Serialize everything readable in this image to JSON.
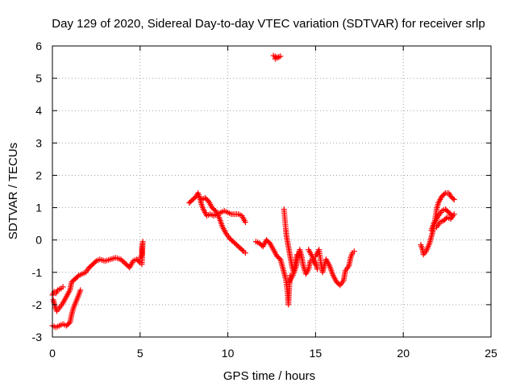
{
  "chart_data": {
    "type": "scatter",
    "title": "Day 129 of 2020, Sidereal Day-to-day VTEC variation (SDTVAR) for receiver srlp",
    "xlabel": "GPS time / hours",
    "ylabel": "SDTVAR / TECUs",
    "xlim": [
      0,
      25
    ],
    "ylim": [
      -3,
      6
    ],
    "xticks": [
      0,
      5,
      10,
      15,
      20,
      25
    ],
    "yticks": [
      -3,
      -2,
      -1,
      0,
      1,
      2,
      3,
      4,
      5,
      6
    ],
    "xtick_labels": [
      "0",
      "5",
      "10",
      "15",
      "20",
      "25"
    ],
    "ytick_labels": [
      "-3",
      "-2",
      "-1",
      "0",
      "1",
      "2",
      "3",
      "4",
      "5",
      "6"
    ],
    "grid": true,
    "marker": "+",
    "marker_color": "#ff0000",
    "series": [
      {
        "name": "srlp",
        "segments": [
          [
            [
              0.0,
              -2.65
            ],
            [
              0.2,
              -2.7
            ],
            [
              0.4,
              -2.65
            ],
            [
              0.6,
              -2.6
            ],
            [
              0.8,
              -2.65
            ],
            [
              1.0,
              -2.55
            ],
            [
              1.1,
              -2.3
            ],
            [
              1.2,
              -2.1
            ],
            [
              1.35,
              -1.9
            ],
            [
              1.5,
              -1.7
            ],
            [
              1.6,
              -1.55
            ]
          ],
          [
            [
              0.0,
              -1.7
            ],
            [
              0.1,
              -1.6
            ],
            [
              0.2,
              -1.65
            ],
            [
              0.3,
              -1.55
            ],
            [
              0.5,
              -1.5
            ],
            [
              0.6,
              -1.45
            ]
          ],
          [
            [
              0.05,
              -1.85
            ],
            [
              0.15,
              -2.05
            ],
            [
              0.25,
              -2.2
            ],
            [
              0.4,
              -2.1
            ],
            [
              0.6,
              -1.95
            ],
            [
              0.8,
              -1.75
            ],
            [
              1.0,
              -1.55
            ],
            [
              1.1,
              -1.3
            ],
            [
              1.3,
              -1.2
            ],
            [
              1.5,
              -1.1
            ],
            [
              1.7,
              -1.05
            ],
            [
              1.9,
              -1.0
            ],
            [
              2.1,
              -0.85
            ],
            [
              2.3,
              -0.75
            ],
            [
              2.5,
              -0.65
            ],
            [
              2.7,
              -0.6
            ],
            [
              3.0,
              -0.65
            ],
            [
              3.3,
              -0.6
            ],
            [
              3.6,
              -0.55
            ],
            [
              3.9,
              -0.6
            ],
            [
              4.2,
              -0.75
            ],
            [
              4.4,
              -0.85
            ],
            [
              4.5,
              -0.75
            ],
            [
              4.6,
              -0.65
            ],
            [
              4.8,
              -0.6
            ],
            [
              5.0,
              -0.7
            ]
          ],
          [
            [
              5.0,
              -0.55
            ],
            [
              5.1,
              -0.45
            ],
            [
              5.1,
              -0.25
            ],
            [
              5.15,
              -0.05
            ],
            [
              5.1,
              -0.75
            ]
          ],
          [
            [
              7.8,
              1.15
            ],
            [
              8.0,
              1.25
            ],
            [
              8.2,
              1.35
            ],
            [
              8.3,
              1.45
            ],
            [
              8.4,
              1.3
            ],
            [
              8.5,
              1.1
            ],
            [
              8.6,
              0.95
            ],
            [
              8.7,
              0.85
            ],
            [
              8.8,
              0.75
            ],
            [
              9.0,
              0.8
            ],
            [
              9.2,
              0.75
            ],
            [
              9.4,
              0.8
            ],
            [
              9.6,
              0.85
            ],
            [
              9.8,
              0.9
            ],
            [
              10.0,
              0.85
            ],
            [
              10.2,
              0.8
            ],
            [
              10.4,
              0.8
            ],
            [
              10.6,
              0.8
            ],
            [
              10.8,
              0.75
            ],
            [
              11.0,
              0.55
            ]
          ],
          [
            [
              8.5,
              1.25
            ],
            [
              8.7,
              1.3
            ],
            [
              8.9,
              1.2
            ],
            [
              9.1,
              1.0
            ],
            [
              9.3,
              0.9
            ],
            [
              9.5,
              0.7
            ],
            [
              9.7,
              0.4
            ],
            [
              9.9,
              0.2
            ],
            [
              10.1,
              0.05
            ],
            [
              10.3,
              -0.05
            ],
            [
              10.5,
              -0.15
            ],
            [
              10.7,
              -0.25
            ],
            [
              10.9,
              -0.35
            ],
            [
              11.0,
              -0.4
            ]
          ],
          [
            [
              12.6,
              5.7
            ],
            [
              12.8,
              5.65
            ],
            [
              13.0,
              5.68
            ],
            [
              12.7,
              5.6
            ]
          ],
          [
            [
              11.6,
              -0.05
            ],
            [
              11.8,
              -0.1
            ],
            [
              12.0,
              -0.2
            ],
            [
              12.2,
              0.0
            ],
            [
              12.4,
              -0.1
            ],
            [
              12.6,
              -0.3
            ],
            [
              12.8,
              -0.5
            ],
            [
              13.0,
              -0.6
            ],
            [
              13.15,
              -0.9
            ],
            [
              13.3,
              -1.2
            ],
            [
              13.4,
              -1.6
            ],
            [
              13.45,
              -2.0
            ],
            [
              13.5,
              -1.5
            ],
            [
              13.55,
              -1.1
            ]
          ],
          [
            [
              13.2,
              0.95
            ],
            [
              13.25,
              0.65
            ],
            [
              13.3,
              0.35
            ],
            [
              13.35,
              0.1
            ],
            [
              13.45,
              -0.2
            ],
            [
              13.55,
              -0.5
            ],
            [
              13.65,
              -0.8
            ],
            [
              13.75,
              -1.0
            ],
            [
              13.85,
              -0.7
            ],
            [
              13.95,
              -0.45
            ],
            [
              14.1,
              -0.5
            ]
          ],
          [
            [
              13.5,
              -1.3
            ],
            [
              13.7,
              -1.1
            ],
            [
              13.9,
              -0.8
            ],
            [
              14.0,
              -0.5
            ],
            [
              14.1,
              -0.3
            ],
            [
              14.2,
              -0.5
            ],
            [
              14.3,
              -0.8
            ],
            [
              14.45,
              -1.05
            ],
            [
              14.6,
              -0.9
            ],
            [
              14.7,
              -0.65
            ],
            [
              14.8,
              -0.6
            ],
            [
              15.0,
              -0.75
            ]
          ],
          [
            [
              15.0,
              -0.5
            ],
            [
              15.2,
              -0.3
            ],
            [
              15.3,
              -0.7
            ],
            [
              15.4,
              -1.0
            ],
            [
              15.5,
              -0.8
            ],
            [
              15.6,
              -0.6
            ],
            [
              15.8,
              -0.8
            ],
            [
              16.0,
              -1.1
            ],
            [
              16.2,
              -1.3
            ],
            [
              16.4,
              -1.4
            ],
            [
              16.6,
              -1.25
            ],
            [
              16.7,
              -0.95
            ],
            [
              16.9,
              -0.8
            ],
            [
              17.0,
              -0.55
            ],
            [
              17.1,
              -0.4
            ],
            [
              17.2,
              -0.35
            ]
          ],
          [
            [
              14.6,
              -0.3
            ],
            [
              14.8,
              -0.5
            ],
            [
              15.0,
              -0.7
            ],
            [
              15.1,
              -0.9
            ]
          ],
          [
            [
              21.0,
              -0.15
            ],
            [
              21.1,
              -0.3
            ],
            [
              21.15,
              -0.45
            ],
            [
              21.3,
              -0.35
            ],
            [
              21.5,
              -0.1
            ],
            [
              21.6,
              0.1
            ],
            [
              21.7,
              0.3
            ],
            [
              21.8,
              0.55
            ],
            [
              22.0,
              0.75
            ],
            [
              22.2,
              0.9
            ],
            [
              22.4,
              0.95
            ],
            [
              22.6,
              0.85
            ],
            [
              22.8,
              0.75
            ]
          ],
          [
            [
              21.6,
              0.3
            ],
            [
              21.8,
              0.6
            ],
            [
              21.9,
              0.95
            ],
            [
              22.0,
              1.15
            ],
            [
              22.2,
              1.35
            ],
            [
              22.4,
              1.45
            ],
            [
              22.6,
              1.45
            ],
            [
              22.7,
              1.35
            ],
            [
              22.9,
              1.25
            ]
          ],
          [
            [
              21.9,
              0.4
            ],
            [
              22.1,
              0.55
            ],
            [
              22.3,
              0.6
            ],
            [
              22.5,
              0.7
            ],
            [
              22.7,
              0.65
            ],
            [
              22.9,
              0.8
            ]
          ]
        ]
      }
    ]
  }
}
